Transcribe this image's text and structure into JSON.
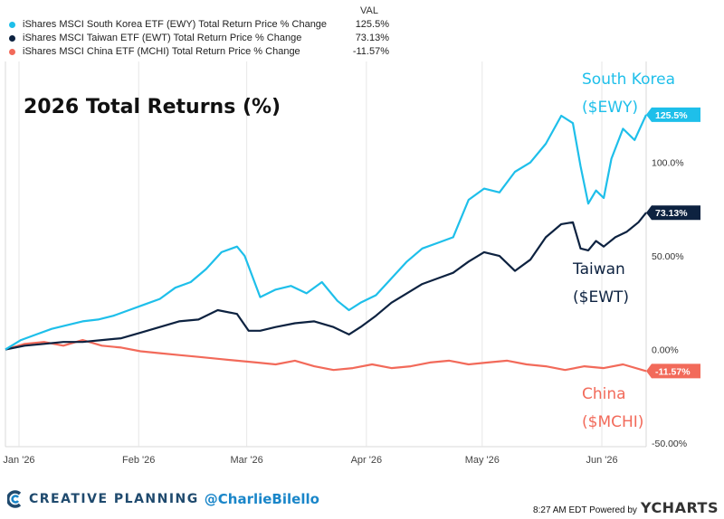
{
  "legend": {
    "header": "VAL",
    "items": [
      {
        "name": "iShares MSCI South Korea ETF (EWY) Total Return Price % Change",
        "value": "125.5%",
        "color": "#1ebfea"
      },
      {
        "name": "iShares MSCI Taiwan ETF (EWT) Total Return Price % Change",
        "value": "73.13%",
        "color": "#0d2240"
      },
      {
        "name": "iShares MSCI China ETF (MCHI) Total Return Price % Change",
        "value": "-11.57%",
        "color": "#f26a5a"
      }
    ]
  },
  "chart_data": {
    "type": "line",
    "title": "2026 Total Returns (%)",
    "xlabel": "",
    "ylabel": "",
    "x_tick_labels": [
      "Jan '26",
      "Feb '26",
      "Mar '26",
      "Apr '26",
      "May '26",
      "Jun '26"
    ],
    "y_tick_labels": [
      "100.0%",
      "50.00%",
      "0.00%",
      "-50.00%"
    ],
    "y_ticks": [
      100,
      50,
      0,
      -50
    ],
    "ylim": [
      -52,
      154
    ],
    "xlim_days": [
      0,
      166
    ],
    "grid": "vertical",
    "series": [
      {
        "name": "South Korea ($EWY)",
        "end_label": "125.5%",
        "color": "#1ebfea",
        "x_days": [
          0,
          4,
          8,
          12,
          16,
          20,
          24,
          28,
          32,
          36,
          40,
          44,
          48,
          52,
          56,
          60,
          62,
          66,
          70,
          74,
          78,
          82,
          86,
          89,
          92,
          96,
          100,
          104,
          108,
          112,
          116,
          120,
          124,
          128,
          132,
          136,
          140,
          144,
          147,
          149,
          151,
          153,
          155,
          157,
          160,
          163,
          166
        ],
        "values": [
          0,
          5,
          8,
          11,
          13,
          15,
          16,
          18,
          21,
          24,
          27,
          33,
          36,
          43,
          52,
          55,
          50,
          28,
          32,
          34,
          30,
          36,
          26,
          21,
          25,
          29,
          38,
          47,
          54,
          57,
          60,
          80,
          86,
          84,
          95,
          100,
          110,
          125,
          121,
          98,
          78,
          85,
          81,
          102,
          118,
          112,
          125.5
        ]
      },
      {
        "name": "Taiwan ($EWT)",
        "end_label": "73.13%",
        "color": "#0d2240",
        "x_days": [
          0,
          5,
          10,
          15,
          20,
          25,
          30,
          35,
          40,
          45,
          50,
          55,
          60,
          63,
          66,
          70,
          75,
          80,
          85,
          89,
          92,
          96,
          100,
          104,
          108,
          112,
          116,
          120,
          124,
          128,
          132,
          136,
          140,
          144,
          147,
          149,
          151,
          153,
          155,
          158,
          161,
          164,
          166
        ],
        "values": [
          0,
          2,
          3,
          4,
          4,
          5,
          6,
          9,
          12,
          15,
          16,
          21,
          19,
          10,
          10,
          12,
          14,
          15,
          12,
          8,
          12,
          18,
          25,
          30,
          35,
          38,
          41,
          47,
          52,
          50,
          42,
          48,
          60,
          67,
          68,
          54,
          53,
          58,
          55,
          60,
          63,
          68,
          73.13
        ]
      },
      {
        "name": "China ($MCHI)",
        "end_label": "-11.57%",
        "color": "#f26a5a",
        "x_days": [
          0,
          5,
          10,
          15,
          20,
          25,
          30,
          35,
          40,
          45,
          50,
          55,
          60,
          65,
          70,
          75,
          80,
          85,
          90,
          95,
          100,
          105,
          110,
          115,
          120,
          125,
          130,
          135,
          140,
          145,
          150,
          155,
          160,
          166
        ],
        "values": [
          0,
          3,
          4,
          2,
          5,
          2,
          1,
          -1,
          -2,
          -3,
          -4,
          -5,
          -6,
          -7,
          -8,
          -6,
          -9,
          -11,
          -10,
          -8,
          -10,
          -9,
          -7,
          -6,
          -8,
          -7,
          -6,
          -8,
          -9,
          -11,
          -9,
          -10,
          -8,
          -11.57
        ]
      }
    ],
    "annotations": [
      {
        "text": "South Korea",
        "color": "#1ebfea"
      },
      {
        "text": "($EWY)",
        "color": "#1ebfea"
      },
      {
        "text": "Taiwan",
        "color": "#0d2240"
      },
      {
        "text": "($EWT)",
        "color": "#0d2240"
      },
      {
        "text": "China",
        "color": "#f26a5a"
      },
      {
        "text": "($MCHI)",
        "color": "#f26a5a"
      }
    ]
  },
  "footer": {
    "brand": "CREATIVE PLANNING",
    "handle": "@CharlieBilello",
    "timestamp": "8:27 AM EDT Powered by",
    "provider": "YCHARTS"
  }
}
